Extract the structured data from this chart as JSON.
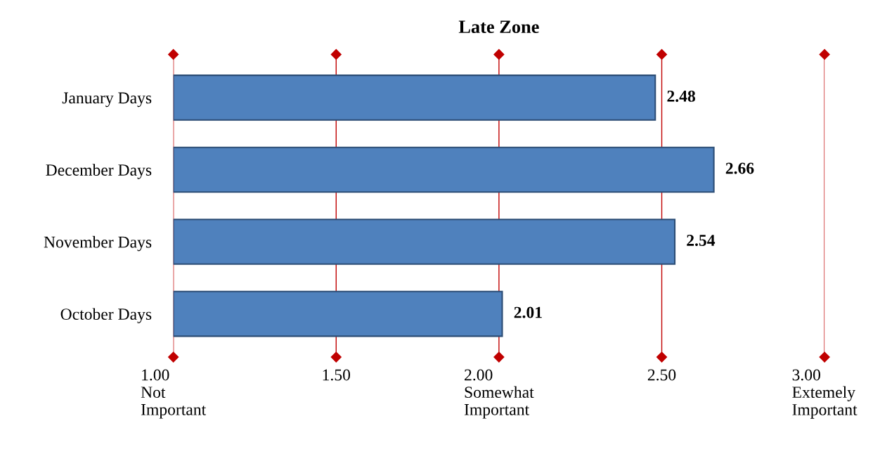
{
  "chart_data": {
    "type": "bar",
    "orientation": "horizontal",
    "title": "Late Zone",
    "categories": [
      "January Days",
      "December Days",
      "November Days",
      "October Days"
    ],
    "values": [
      2.48,
      2.66,
      2.54,
      2.01
    ],
    "color": "#4f81bd",
    "data_labels": true,
    "xlim": [
      1,
      3
    ],
    "xticks": [
      {
        "value": 1,
        "label": "1.00\nNot\nImportant"
      },
      {
        "value": 1.5,
        "label": "1.50"
      },
      {
        "value": 2,
        "label": "2.00\nSomewhat\nImportant"
      },
      {
        "value": 2.5,
        "label": "2.50"
      },
      {
        "value": 3,
        "label": "3.00\nExtemely\nImportant"
      }
    ],
    "grid": "x"
  }
}
